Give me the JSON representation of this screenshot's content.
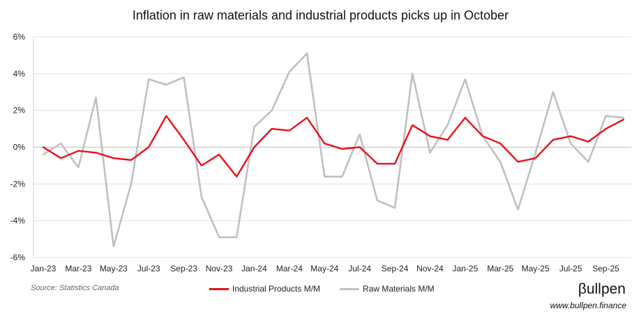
{
  "chart_data": {
    "type": "line",
    "title": "Inflation in raw materials and industrial products picks up in October",
    "xlabel": "",
    "ylabel": "",
    "ylim": [
      -6,
      6
    ],
    "yticks": [
      "6%",
      "4%",
      "2%",
      "0%",
      "-2%",
      "-4%",
      "-6%"
    ],
    "ytick_values": [
      6,
      4,
      2,
      0,
      -2,
      -4,
      -6
    ],
    "x": [
      "Jan-23",
      "Feb-23",
      "Mar-23",
      "Apr-23",
      "May-23",
      "Jun-23",
      "Jul-23",
      "Aug-23",
      "Sep-23",
      "Oct-23",
      "Nov-23",
      "Dec-23",
      "Jan-24",
      "Feb-24",
      "Mar-24",
      "Apr-24",
      "May-24",
      "Jun-24",
      "Jul-24",
      "Aug-24",
      "Sep-24",
      "Oct-24",
      "Nov-24",
      "Dec-24",
      "Jan-25",
      "Feb-25",
      "Mar-25",
      "Apr-25",
      "May-25",
      "Jun-25",
      "Jul-25",
      "Aug-25",
      "Sep-25",
      "Oct-25"
    ],
    "xtick_labels": [
      "Jan-23",
      "Mar-23",
      "May-23",
      "Jul-23",
      "Sep-23",
      "Nov-23",
      "Jan-24",
      "Mar-24",
      "May-24",
      "Jul-24",
      "Sep-24",
      "Nov-24",
      "Jan-25",
      "Mar-25",
      "May-25",
      "Jul-25",
      "Sep-25"
    ],
    "grid": true,
    "legend_position": "bottom",
    "series": [
      {
        "name": "Industrial Products M/M",
        "color": "#e8101b",
        "values": [
          0.0,
          -0.6,
          -0.2,
          -0.3,
          -0.6,
          -0.7,
          0.0,
          1.7,
          0.4,
          -1.0,
          -0.4,
          -1.6,
          0.0,
          1.0,
          0.9,
          1.6,
          0.2,
          -0.1,
          0.0,
          -0.9,
          -0.9,
          1.2,
          0.6,
          0.4,
          1.6,
          0.6,
          0.2,
          -0.8,
          -0.6,
          0.4,
          0.6,
          0.3,
          1.0,
          1.5
        ]
      },
      {
        "name": "Raw Materials M/M",
        "color": "#c0c0c0",
        "values": [
          -0.4,
          0.2,
          -1.1,
          2.7,
          -5.4,
          -2.0,
          3.7,
          3.4,
          3.8,
          -2.7,
          -4.9,
          -4.9,
          1.1,
          2.0,
          4.1,
          5.1,
          -1.6,
          -1.6,
          0.7,
          -2.9,
          -3.3,
          4.0,
          -0.3,
          1.2,
          3.7,
          0.6,
          -0.8,
          -3.4,
          -0.3,
          3.0,
          0.2,
          -0.8,
          1.7,
          1.6
        ]
      }
    ]
  },
  "footer": {
    "source": "Source: Statistics Canada",
    "brand": "βullpen",
    "website": "www.bullpen.finance"
  }
}
